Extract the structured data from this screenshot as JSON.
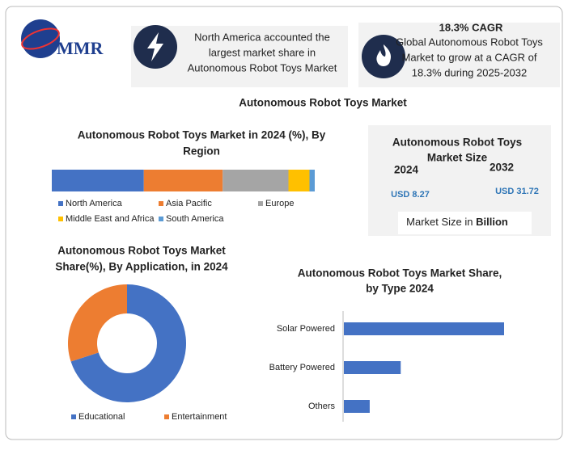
{
  "header": {
    "logo": "MMR",
    "callout_lines": [
      "North America accounted the",
      "largest market share in",
      "Autonomous Robot Toys Market"
    ],
    "cagr_title": "18.3% CAGR",
    "cagr_lines": [
      "Global Autonomous Robot Toys",
      "Market to grow at a CAGR of",
      "18.3% during 2025-2032"
    ]
  },
  "main_title": "Autonomous Robot Toys Market",
  "market_size": {
    "title_lines": [
      "Autonomous Robot Toys",
      "Market Size"
    ],
    "years": [
      "2024",
      "2032"
    ],
    "amounts": [
      "USD 8.27",
      "USD 31.72"
    ],
    "footer": "Market Size in",
    "footer_unit": "Billion"
  },
  "chart_data": [
    {
      "type": "stacked-bar",
      "title_lines": [
        "Autonomous Robot Toys Market in 2024 (%), By",
        "Region"
      ],
      "series": [
        {
          "name": "North America",
          "color": "#4472c4",
          "values": [
            35
          ]
        },
        {
          "name": "Asia Pacific",
          "color": "#ed7d31",
          "values": [
            30
          ]
        },
        {
          "name": "Europe",
          "color": "#a5a5a5",
          "values": [
            25
          ]
        },
        {
          "name": "Middle East and Africa",
          "color": "#ffc000",
          "values": [
            8
          ]
        },
        {
          "name": "South America",
          "color": "#5b9bd5",
          "values": [
            2
          ]
        }
      ]
    },
    {
      "type": "donut",
      "title_lines": [
        "Autonomous Robot Toys Market",
        "Share(%), By Application, in 2024"
      ],
      "categories": [
        "Educational",
        "Entertainment"
      ],
      "values": [
        70,
        30
      ],
      "colors": [
        "#4472c4",
        "#ed7d31"
      ]
    },
    {
      "type": "hbar",
      "title_lines": [
        "Autonomous Robot Toys Market Share,",
        "by Type 2024"
      ],
      "categories": [
        "Solar Powered",
        "Battery Powered",
        "Others"
      ],
      "values": [
        62,
        22,
        10
      ],
      "color": "#4472c4"
    }
  ]
}
